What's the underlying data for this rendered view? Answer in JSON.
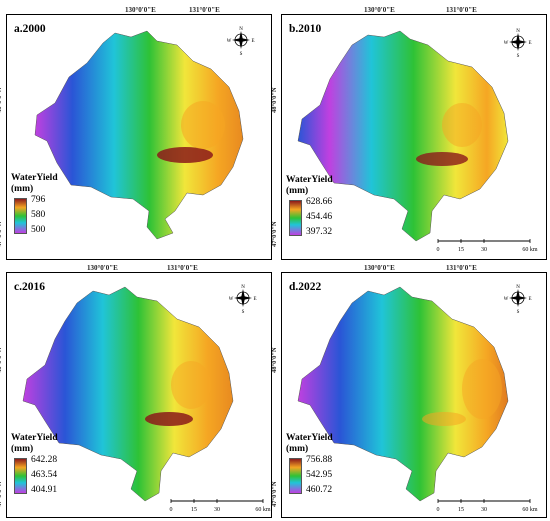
{
  "coord_labels": {
    "lon1": "130°0'0\"E",
    "lon2": "131°0'0\"E",
    "lat1": "48°0'0\"N",
    "lat2": "47°0'0\"N"
  },
  "compass": {
    "n": "N",
    "e": "E",
    "s": "S",
    "w": "W"
  },
  "scale": {
    "t0": "0",
    "t1": "15",
    "t2": "30",
    "t3": "60 km"
  },
  "colors": {
    "high": "#8b1a1a",
    "mid_high": "#f5a623",
    "mid": "#f1e63a",
    "mid_low": "#2ec236",
    "low1": "#20c4d8",
    "low2": "#2a55d6",
    "lowest": "#c040e0"
  },
  "panels": [
    {
      "title": "a.2000",
      "legend_title": "WaterYield",
      "legend_unit": "(mm)",
      "max": "796",
      "mid": "580",
      "min": "500"
    },
    {
      "title": "b.2010",
      "legend_title": "WaterYield",
      "legend_unit": "(mm)",
      "max": "628.66",
      "mid": "454.46",
      "min": "397.32"
    },
    {
      "title": "c.2016",
      "legend_title": "WaterYield",
      "legend_unit": "(mm)",
      "max": "642.28",
      "mid": "463.54",
      "min": "404.91"
    },
    {
      "title": "d.2022",
      "legend_title": "WaterYield",
      "legend_unit": "(mm)",
      "max": "756.88",
      "mid": "542.95",
      "min": "460.72"
    }
  ]
}
